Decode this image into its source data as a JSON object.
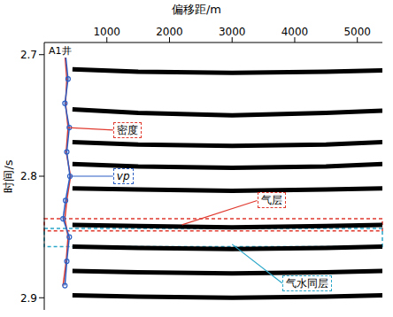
{
  "chart_data": {
    "type": "scatter",
    "x_label": "偏移距/m",
    "y_label": "时间/s",
    "well_label": "A1井",
    "xlim": [
      0,
      5400
    ],
    "xticks": [
      1000,
      2000,
      3000,
      4000,
      5000
    ],
    "ylim": [
      2.69,
      2.91
    ],
    "yticks": [
      2.7,
      2.8,
      2.9
    ],
    "series": [
      {
        "name": "密度",
        "color": "#e03a2f",
        "marker": "none",
        "line_style": "solid",
        "x": [
          330,
          360,
          340,
          380,
          350,
          420,
          360,
          330,
          380,
          350,
          300
        ],
        "values": [
          2.7,
          2.72,
          2.74,
          2.76,
          2.78,
          2.8,
          2.82,
          2.835,
          2.85,
          2.87,
          2.89
        ]
      },
      {
        "name": "vp",
        "color": "#2c5fc4",
        "marker": "circle",
        "line_style": "solid",
        "x": [
          340,
          380,
          330,
          400,
          360,
          410,
          340,
          300,
          400,
          360,
          330
        ],
        "values": [
          2.7,
          2.72,
          2.74,
          2.76,
          2.78,
          2.8,
          2.82,
          2.835,
          2.85,
          2.87,
          2.89
        ]
      },
      {
        "color": "#000000",
        "marker": "none",
        "line_style": "solid",
        "x": [
          450,
          1500,
          3000,
          4500,
          5400
        ],
        "values": [
          2.712,
          2.714,
          2.715,
          2.714,
          2.713
        ]
      },
      {
        "color": "#000000",
        "marker": "none",
        "line_style": "solid",
        "x": [
          450,
          1500,
          3000,
          4500,
          5400
        ],
        "values": [
          2.745,
          2.748,
          2.75,
          2.748,
          2.746
        ]
      },
      {
        "color": "#000000",
        "marker": "none",
        "line_style": "solid",
        "x": [
          450,
          1500,
          3000,
          4500,
          5400
        ],
        "values": [
          2.772,
          2.774,
          2.775,
          2.774,
          2.772
        ]
      },
      {
        "color": "#000000",
        "marker": "none",
        "line_style": "solid",
        "x": [
          450,
          1500,
          3000,
          4500,
          5400
        ],
        "values": [
          2.79,
          2.792,
          2.793,
          2.792,
          2.79
        ]
      },
      {
        "color": "#000000",
        "marker": "none",
        "line_style": "solid",
        "x": [
          450,
          1500,
          3000,
          4500,
          5400
        ],
        "values": [
          2.81,
          2.811,
          2.812,
          2.811,
          2.81
        ]
      },
      {
        "color": "#000000",
        "marker": "none",
        "line_style": "solid",
        "x": [
          450,
          1500,
          3000,
          4500,
          5400
        ],
        "values": [
          2.84,
          2.841,
          2.842,
          2.841,
          2.84
        ]
      },
      {
        "color": "#000000",
        "marker": "none",
        "line_style": "solid",
        "x": [
          450,
          1500,
          3000,
          4500,
          5400
        ],
        "values": [
          2.858,
          2.859,
          2.86,
          2.859,
          2.858
        ]
      },
      {
        "color": "#000000",
        "marker": "none",
        "line_style": "solid",
        "x": [
          450,
          1500,
          3000,
          4500,
          5400
        ],
        "values": [
          2.878,
          2.879,
          2.88,
          2.879,
          2.878
        ]
      },
      {
        "color": "#000000",
        "marker": "none",
        "line_style": "solid",
        "x": [
          450,
          1500,
          3000,
          4500,
          5400
        ],
        "values": [
          2.898,
          2.899,
          2.9,
          2.899,
          2.898
        ]
      }
    ],
    "annotations": [
      {
        "text": "气层",
        "color": "#e03a2f",
        "line_style": "dashed",
        "x": [
          0,
          5400
        ],
        "y": [
          2.835,
          2.845
        ]
      },
      {
        "text": "气水同层",
        "color": "#2aa7c9",
        "line_style": "dashed",
        "x": [
          0,
          5400
        ],
        "y": [
          2.843,
          2.858
        ]
      }
    ]
  }
}
